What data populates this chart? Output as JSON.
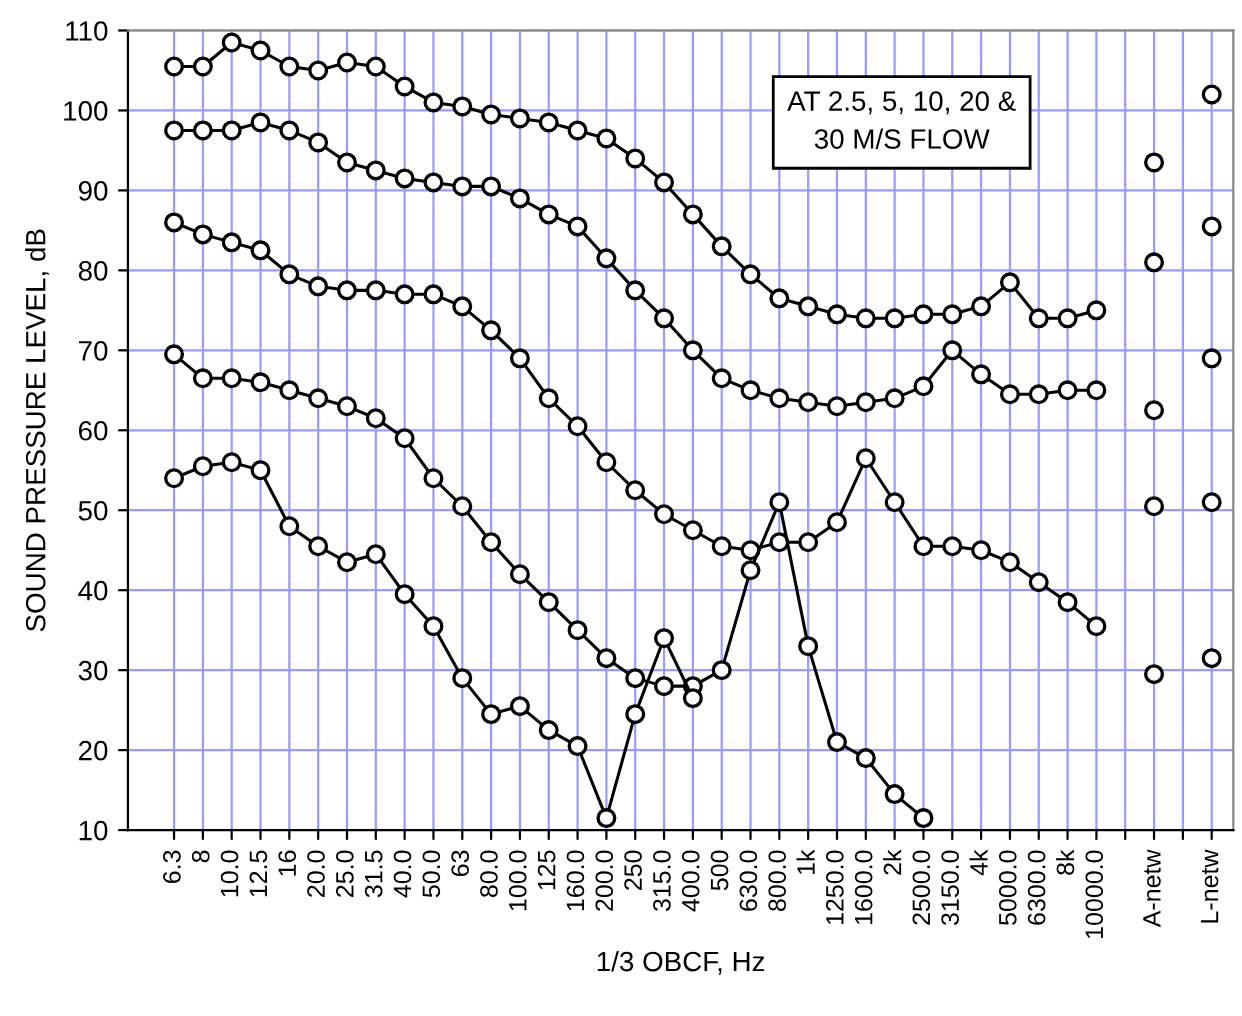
{
  "chart_data": {
    "type": "line",
    "xlabel": "1/3 OBCF, Hz",
    "ylabel": "SOUND PRESSURE LEVEL, dB",
    "annotations": [
      "AT 2.5, 5, 10, 20 &\n30 M/S FLOW"
    ],
    "categories": [
      "6.3",
      "8",
      "10.0",
      "12.5",
      "16",
      "20.0",
      "25.0",
      "31.5",
      "40.0",
      "50.0",
      "63",
      "80.0",
      "100.0",
      "125",
      "160.0",
      "200.0",
      "250",
      "315.0",
      "400.0",
      "500",
      "630.0",
      "800.0",
      "1k",
      "1250.0",
      "1600.0",
      "2k",
      "2500.0",
      "3150.0",
      "4k",
      "5000.0",
      "6300.0",
      "8k",
      "10000.0",
      null,
      "A-netw",
      null,
      "L-netw"
    ],
    "series": [
      {
        "color": "#000000",
        "values": [
          105.5,
          105.5,
          108.5,
          107.5,
          105.5,
          105,
          106,
          105.5,
          103,
          101,
          100.5,
          99.5,
          99,
          98.5,
          97.5,
          96.5,
          94,
          91,
          87,
          83,
          79.5,
          76.5,
          75.5,
          74.5,
          74,
          74,
          74.5,
          74.5,
          75.5,
          78.5,
          74,
          74,
          75,
          null,
          93.5,
          null,
          102
        ]
      },
      {
        "color": "#000000",
        "values": [
          97.5,
          97.5,
          97.5,
          98.5,
          97.5,
          96,
          93.5,
          92.5,
          91.5,
          91,
          90.5,
          90.5,
          89,
          87,
          85.5,
          81.5,
          77.5,
          74,
          70,
          66.5,
          65,
          64,
          63.5,
          63,
          63.5,
          64,
          65.5,
          70,
          67,
          64.5,
          64.5,
          65,
          65,
          null,
          81,
          null,
          85.5
        ]
      },
      {
        "color": "#000000",
        "values": [
          86,
          84.5,
          83.5,
          82.5,
          79.5,
          78,
          77.5,
          77.5,
          77,
          77,
          75.5,
          72.5,
          69,
          64,
          60.5,
          56,
          52.5,
          49.5,
          47.5,
          45.5,
          45,
          46,
          46,
          48.5,
          56.5,
          51,
          45.5,
          45.5,
          45,
          43.5,
          41,
          38.5,
          35.5,
          null,
          62.5,
          null,
          69
        ]
      },
      {
        "color": "#000000",
        "values": [
          69.5,
          66.5,
          66.5,
          66,
          65,
          64,
          63,
          61.5,
          59,
          54,
          50.5,
          46,
          42,
          38.5,
          35,
          31.5,
          29,
          28,
          28,
          30,
          42.5,
          51,
          33,
          21,
          19,
          14.5,
          11.5,
          null,
          null,
          null,
          null,
          null,
          null,
          null,
          50.5,
          null,
          51
        ]
      },
      {
        "color": "#000000",
        "values": [
          54,
          55.5,
          56,
          55,
          48,
          45.5,
          43.5,
          44.5,
          39.5,
          35.5,
          29,
          24.5,
          25.5,
          22.5,
          20.5,
          11.5,
          24.5,
          34,
          26.5,
          null,
          null,
          null,
          null,
          null,
          null,
          null,
          null,
          null,
          null,
          null,
          null,
          null,
          null,
          null,
          29.5,
          null,
          31.5
        ]
      }
    ],
    "ylim": [
      10,
      110
    ],
    "yticks": [
      10,
      20,
      30,
      40,
      50,
      60,
      70,
      80,
      90,
      100,
      110
    ],
    "grid": true,
    "marker": "circle",
    "line_style": "solid"
  }
}
